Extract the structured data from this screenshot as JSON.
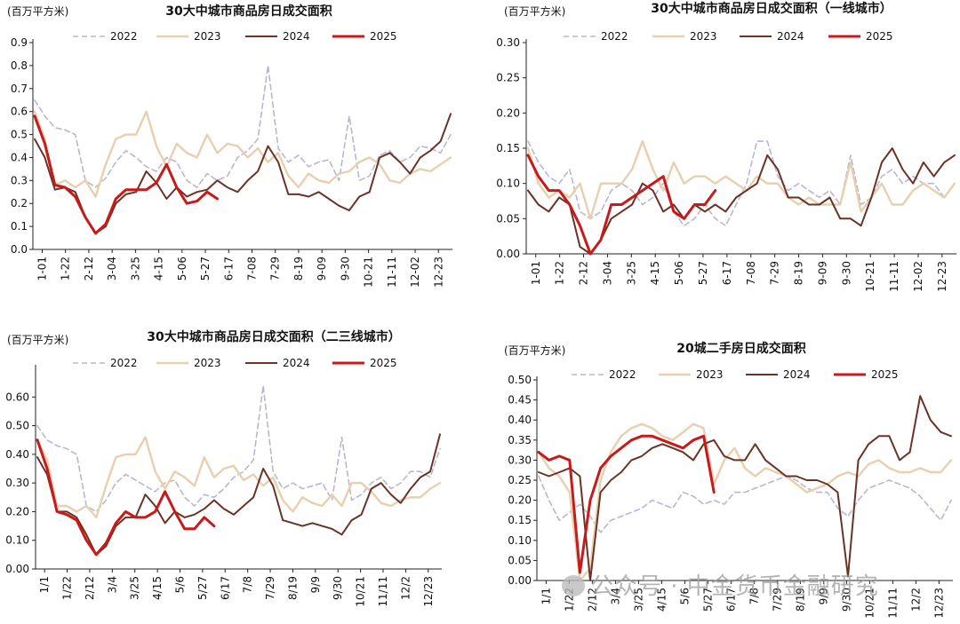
{
  "colors": {
    "2022": "#b9b7d0",
    "2023": "#e8cfae",
    "2024": "#6b3226",
    "2025": "#c8191b"
  },
  "watermark": "公众号 · 中金货币金融研究",
  "chart_data": [
    {
      "type": "line",
      "title": "30大中城市商品房日成交面积",
      "unit": "(百万平方米)",
      "ylim": [
        0,
        0.9
      ],
      "yticks": [
        "0.0",
        "0.1",
        "0.2",
        "0.3",
        "0.4",
        "0.5",
        "0.6",
        "0.7",
        "0.8",
        "0.9"
      ],
      "xticks": [
        "1-01",
        "1-22",
        "2-12",
        "3-04",
        "3-25",
        "4-15",
        "5-06",
        "5-27",
        "6-17",
        "7-08",
        "7-29",
        "8-19",
        "9-09",
        "9-30",
        "10-21",
        "11-11",
        "12-02",
        "12-23"
      ],
      "series": [
        {
          "name": "2022",
          "dash": true,
          "values": [
            0.65,
            0.58,
            0.53,
            0.52,
            0.5,
            0.3,
            0.27,
            0.31,
            0.38,
            0.43,
            0.4,
            0.36,
            0.34,
            0.4,
            0.38,
            0.3,
            0.27,
            0.33,
            0.3,
            0.32,
            0.4,
            0.43,
            0.48,
            0.8,
            0.44,
            0.38,
            0.41,
            0.36,
            0.38,
            0.39,
            0.3,
            0.58,
            0.3,
            0.32,
            0.41,
            0.43,
            0.38,
            0.4,
            0.45,
            0.44,
            0.42,
            0.5
          ]
        },
        {
          "name": "2023",
          "values": [
            0.6,
            0.48,
            0.28,
            0.3,
            0.27,
            0.3,
            0.23,
            0.37,
            0.48,
            0.5,
            0.5,
            0.6,
            0.45,
            0.36,
            0.46,
            0.42,
            0.4,
            0.5,
            0.42,
            0.46,
            0.45,
            0.4,
            0.44,
            0.38,
            0.42,
            0.32,
            0.27,
            0.33,
            0.3,
            0.29,
            0.33,
            0.34,
            0.38,
            0.4,
            0.37,
            0.3,
            0.29,
            0.33,
            0.35,
            0.34,
            0.37,
            0.4
          ]
        },
        {
          "name": "2024",
          "values": [
            0.48,
            0.4,
            0.26,
            0.27,
            0.25,
            0.14,
            0.07,
            0.1,
            0.2,
            0.24,
            0.25,
            0.34,
            0.29,
            0.22,
            0.27,
            0.23,
            0.25,
            0.26,
            0.3,
            0.27,
            0.25,
            0.3,
            0.34,
            0.45,
            0.38,
            0.24,
            0.24,
            0.23,
            0.25,
            0.22,
            0.19,
            0.17,
            0.23,
            0.25,
            0.4,
            0.42,
            0.38,
            0.33,
            0.4,
            0.43,
            0.47,
            0.59
          ]
        },
        {
          "name": "2025",
          "values": [
            0.58,
            0.46,
            0.28,
            0.27,
            0.23,
            0.14,
            0.07,
            0.11,
            0.22,
            0.26,
            0.26,
            0.26,
            0.29,
            0.37,
            0.27,
            0.2,
            0.21,
            0.25,
            0.22
          ]
        }
      ]
    },
    {
      "type": "line",
      "title": "30大中城市商品房日成交面积（一线城市）",
      "unit": "(百万平方米)",
      "ylim": [
        0,
        0.3
      ],
      "yticks": [
        "0.00",
        "0.05",
        "0.10",
        "0.15",
        "0.20",
        "0.25",
        "0.30"
      ],
      "xticks": [
        "1-01",
        "1-22",
        "2-12",
        "3-04",
        "3-25",
        "4-15",
        "5-06",
        "5-27",
        "6-17",
        "7-08",
        "7-29",
        "8-19",
        "9-09",
        "9-30",
        "10-21",
        "11-11",
        "12-02",
        "12-23"
      ],
      "series": [
        {
          "name": "2022",
          "dash": true,
          "values": [
            0.16,
            0.13,
            0.11,
            0.1,
            0.12,
            0.06,
            0.05,
            0.06,
            0.09,
            0.1,
            0.09,
            0.07,
            0.08,
            0.1,
            0.06,
            0.04,
            0.05,
            0.07,
            0.05,
            0.04,
            0.07,
            0.1,
            0.16,
            0.16,
            0.11,
            0.09,
            0.1,
            0.09,
            0.08,
            0.09,
            0.07,
            0.14,
            0.07,
            0.08,
            0.11,
            0.12,
            0.1,
            0.11,
            0.1,
            0.1,
            0.08,
            0.1
          ]
        },
        {
          "name": "2023",
          "values": [
            0.15,
            0.1,
            0.08,
            0.09,
            0.08,
            0.1,
            0.05,
            0.1,
            0.1,
            0.1,
            0.12,
            0.16,
            0.12,
            0.09,
            0.13,
            0.1,
            0.11,
            0.11,
            0.1,
            0.11,
            0.1,
            0.09,
            0.11,
            0.1,
            0.1,
            0.08,
            0.07,
            0.08,
            0.07,
            0.07,
            0.07,
            0.13,
            0.06,
            0.08,
            0.1,
            0.07,
            0.07,
            0.09,
            0.1,
            0.09,
            0.08,
            0.1
          ]
        },
        {
          "name": "2024",
          "values": [
            0.09,
            0.07,
            0.06,
            0.08,
            0.07,
            0.01,
            0.0,
            0.02,
            0.05,
            0.06,
            0.07,
            0.1,
            0.09,
            0.06,
            0.07,
            0.05,
            0.07,
            0.06,
            0.07,
            0.06,
            0.08,
            0.09,
            0.1,
            0.14,
            0.12,
            0.08,
            0.08,
            0.07,
            0.07,
            0.08,
            0.05,
            0.05,
            0.04,
            0.08,
            0.13,
            0.15,
            0.12,
            0.1,
            0.13,
            0.11,
            0.13,
            0.14
          ]
        },
        {
          "name": "2025",
          "values": [
            0.14,
            0.11,
            0.09,
            0.09,
            0.07,
            0.04,
            0.0,
            0.02,
            0.07,
            0.07,
            0.08,
            0.09,
            0.1,
            0.11,
            0.06,
            0.05,
            0.07,
            0.07,
            0.09
          ]
        }
      ]
    },
    {
      "type": "line",
      "title": "30大中城市商品房日成交面积（二三线城市）",
      "unit": "(百万平方米)",
      "ylim": [
        0,
        0.7
      ],
      "yticks": [
        "0.00",
        "0.10",
        "0.20",
        "0.30",
        "0.40",
        "0.50",
        "0.60"
      ],
      "xticks": [
        "1/1",
        "1/22",
        "2/12",
        "3/4",
        "3/25",
        "4/15",
        "5/6",
        "5/27",
        "6/17",
        "7/8",
        "7/29",
        "8/19",
        "9/9",
        "9/30",
        "10/21",
        "11/11",
        "12/2",
        "12/23"
      ],
      "series": [
        {
          "name": "2022",
          "dash": true,
          "values": [
            0.5,
            0.45,
            0.43,
            0.42,
            0.4,
            0.22,
            0.2,
            0.24,
            0.3,
            0.33,
            0.31,
            0.29,
            0.27,
            0.3,
            0.31,
            0.25,
            0.22,
            0.26,
            0.25,
            0.28,
            0.32,
            0.34,
            0.38,
            0.64,
            0.34,
            0.28,
            0.3,
            0.28,
            0.29,
            0.3,
            0.24,
            0.46,
            0.24,
            0.26,
            0.3,
            0.32,
            0.28,
            0.3,
            0.34,
            0.34,
            0.32,
            0.42
          ]
        },
        {
          "name": "2023",
          "values": [
            0.45,
            0.38,
            0.22,
            0.22,
            0.2,
            0.22,
            0.18,
            0.29,
            0.39,
            0.4,
            0.4,
            0.46,
            0.34,
            0.28,
            0.34,
            0.32,
            0.29,
            0.39,
            0.32,
            0.35,
            0.36,
            0.31,
            0.33,
            0.29,
            0.32,
            0.24,
            0.2,
            0.25,
            0.23,
            0.22,
            0.26,
            0.22,
            0.3,
            0.3,
            0.27,
            0.23,
            0.22,
            0.24,
            0.25,
            0.25,
            0.28,
            0.3
          ]
        },
        {
          "name": "2024",
          "values": [
            0.39,
            0.33,
            0.2,
            0.2,
            0.18,
            0.12,
            0.05,
            0.08,
            0.15,
            0.18,
            0.18,
            0.26,
            0.22,
            0.16,
            0.2,
            0.18,
            0.19,
            0.21,
            0.24,
            0.21,
            0.19,
            0.22,
            0.25,
            0.35,
            0.29,
            0.17,
            0.16,
            0.15,
            0.16,
            0.15,
            0.14,
            0.12,
            0.17,
            0.19,
            0.28,
            0.3,
            0.26,
            0.23,
            0.28,
            0.32,
            0.34,
            0.47
          ]
        },
        {
          "name": "2025",
          "values": [
            0.45,
            0.35,
            0.2,
            0.19,
            0.17,
            0.1,
            0.05,
            0.09,
            0.16,
            0.2,
            0.18,
            0.18,
            0.2,
            0.27,
            0.2,
            0.14,
            0.14,
            0.18,
            0.15
          ]
        }
      ]
    },
    {
      "type": "line",
      "title": "20城二手房日成交面积",
      "unit": "(百万平方米)",
      "ylim": [
        0,
        0.5
      ],
      "yticks": [
        "0.00",
        "0.05",
        "0.10",
        "0.15",
        "0.20",
        "0.25",
        "0.30",
        "0.35",
        "0.40",
        "0.45",
        "0.50"
      ],
      "xticks": [
        "1/1",
        "1/22",
        "2/12",
        "3/4",
        "3/25",
        "4/15",
        "5/6",
        "5/27",
        "6/17",
        "7/8",
        "7/29",
        "8/19",
        "9/9",
        "9/30",
        "10/21",
        "11/11",
        "12/2",
        "12/23"
      ],
      "series": [
        {
          "name": "2022",
          "dash": true,
          "values": [
            0.26,
            0.2,
            0.15,
            0.17,
            0.19,
            0.16,
            0.12,
            0.15,
            0.16,
            0.17,
            0.18,
            0.2,
            0.19,
            0.18,
            0.22,
            0.21,
            0.19,
            0.2,
            0.19,
            0.22,
            0.22,
            0.23,
            0.24,
            0.25,
            0.26,
            0.25,
            0.23,
            0.22,
            0.22,
            0.18,
            0.16,
            0.2,
            0.23,
            0.24,
            0.25,
            0.24,
            0.23,
            0.21,
            0.18,
            0.15,
            0.2
          ]
        },
        {
          "name": "2023",
          "values": [
            0.32,
            0.28,
            0.26,
            0.22,
            0.0,
            0.03,
            0.25,
            0.32,
            0.36,
            0.38,
            0.39,
            0.38,
            0.36,
            0.35,
            0.37,
            0.39,
            0.38,
            0.24,
            0.3,
            0.33,
            0.28,
            0.26,
            0.28,
            0.27,
            0.26,
            0.24,
            0.22,
            0.23,
            0.24,
            0.26,
            0.27,
            0.26,
            0.29,
            0.3,
            0.28,
            0.27,
            0.27,
            0.28,
            0.27,
            0.27,
            0.3
          ]
        },
        {
          "name": "2024",
          "values": [
            0.27,
            0.26,
            0.27,
            0.28,
            0.26,
            0.0,
            0.22,
            0.25,
            0.27,
            0.3,
            0.31,
            0.33,
            0.34,
            0.33,
            0.32,
            0.3,
            0.34,
            0.35,
            0.31,
            0.3,
            0.3,
            0.34,
            0.3,
            0.28,
            0.26,
            0.26,
            0.25,
            0.25,
            0.24,
            0.22,
            0.01,
            0.3,
            0.34,
            0.36,
            0.36,
            0.3,
            0.32,
            0.46,
            0.4,
            0.37,
            0.36
          ]
        },
        {
          "name": "2025",
          "values": [
            0.32,
            0.3,
            0.31,
            0.3,
            0.02,
            0.2,
            0.28,
            0.31,
            0.33,
            0.35,
            0.36,
            0.36,
            0.35,
            0.34,
            0.33,
            0.35,
            0.36,
            0.22
          ]
        }
      ]
    }
  ]
}
